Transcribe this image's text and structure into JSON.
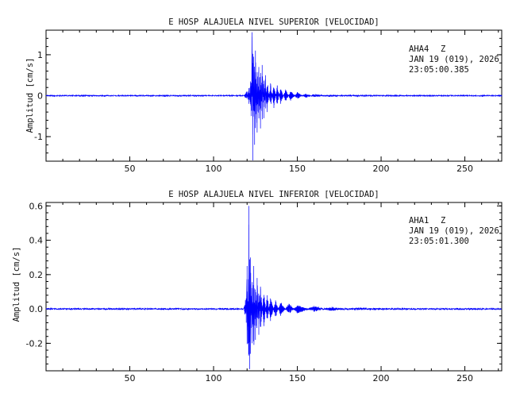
{
  "chart_data": [
    {
      "type": "line",
      "title": "E HOSP ALAJUELA NIVEL SUPERIOR [VELOCIDAD]",
      "ylabel": "Amplitud [cm/s]",
      "xlabel": "",
      "xlim": [
        0,
        272
      ],
      "ylim": [
        -1.6,
        1.6
      ],
      "xticks": [
        50,
        100,
        150,
        200,
        250
      ],
      "yticks": [
        {
          "value": 1,
          "label": "1"
        },
        {
          "value": 0,
          "label": "0"
        },
        {
          "value": -1,
          "label": "-1"
        }
      ],
      "station": "AHA4",
      "component": "Z",
      "date_line": "JAN 19 (019), 2026",
      "time_line": "23:05:00.385",
      "series": [
        {
          "color": "#0000ff",
          "x": [
            0,
            118,
            120,
            121,
            122,
            122.4,
            123,
            123.4,
            124,
            124.5,
            125,
            126,
            127,
            128,
            129,
            130,
            131,
            132,
            134,
            136,
            138,
            140,
            143,
            146,
            150,
            155,
            160,
            170,
            180,
            200,
            230,
            272
          ],
          "y": [
            0,
            0,
            0.1,
            -0.2,
            0.35,
            -0.5,
            1.55,
            -1.58,
            0.95,
            -1.2,
            1.1,
            -0.9,
            0.7,
            -0.8,
            0.75,
            -0.55,
            0.5,
            -0.4,
            0.3,
            -0.3,
            0.25,
            -0.2,
            0.15,
            -0.12,
            0.08,
            -0.05,
            0.03,
            -0.02,
            0.01,
            0,
            0,
            0
          ]
        }
      ]
    },
    {
      "type": "line",
      "title": "E HOSP ALAJUELA NIVEL INFERIOR [VELOCIDAD]",
      "ylabel": "Amplitud [cm/s]",
      "xlabel": "",
      "xlim": [
        0,
        272
      ],
      "ylim": [
        -0.36,
        0.62
      ],
      "xticks": [
        50,
        100,
        150,
        200,
        250
      ],
      "yticks": [
        {
          "value": 0.6,
          "label": "0.6"
        },
        {
          "value": 0.4,
          "label": "0.4"
        },
        {
          "value": 0.2,
          "label": "0.2"
        },
        {
          "value": 0.0,
          "label": "0.0"
        },
        {
          "value": -0.2,
          "label": "-0.2"
        }
      ],
      "station": "AHA1",
      "component": "Z",
      "date_line": "JAN 19 (019), 2026",
      "time_line": "23:05:01.300",
      "series": [
        {
          "color": "#0000ff",
          "x": [
            0,
            118,
            119,
            119.5,
            120,
            120.5,
            121,
            121.5,
            122,
            123,
            124,
            125,
            126,
            127,
            128,
            130,
            132,
            134,
            137,
            140,
            145,
            150,
            160,
            170,
            185,
            200,
            230,
            272
          ],
          "y": [
            0,
            0,
            0.05,
            -0.08,
            0.25,
            -0.2,
            0.6,
            -0.35,
            0.3,
            -0.2,
            0.25,
            -0.18,
            0.18,
            -0.15,
            0.13,
            -0.1,
            0.08,
            -0.07,
            0.05,
            -0.04,
            0.03,
            -0.025,
            0.015,
            -0.01,
            0.005,
            0,
            0,
            0
          ]
        }
      ]
    }
  ]
}
